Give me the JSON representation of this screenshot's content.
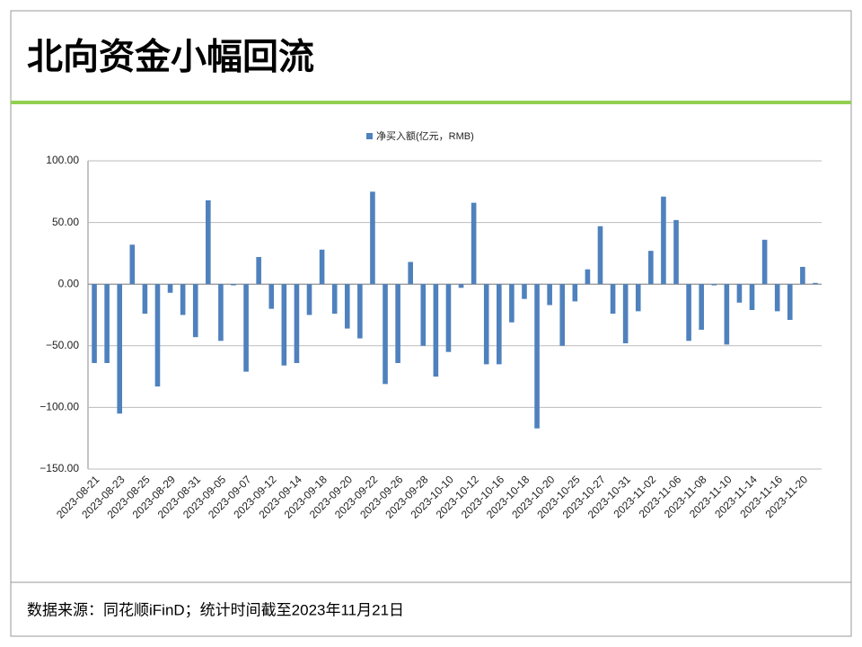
{
  "header": {
    "title": "北向资金小幅回流"
  },
  "chart_data": {
    "type": "bar",
    "categories": [
      "2023-08-21",
      null,
      "2023-08-23",
      null,
      "2023-08-25",
      null,
      "2023-08-29",
      null,
      "2023-08-31",
      null,
      "2023-09-05",
      null,
      "2023-09-07",
      null,
      "2023-09-12",
      null,
      "2023-09-14",
      null,
      "2023-09-18",
      null,
      "2023-09-20",
      null,
      "2023-09-22",
      null,
      "2023-09-26",
      null,
      "2023-09-28",
      null,
      "2023-10-10",
      null,
      "2023-10-12",
      null,
      "2023-10-16",
      null,
      "2023-10-18",
      null,
      "2023-10-20",
      null,
      "2023-10-25",
      null,
      "2023-10-27",
      null,
      "2023-10-31",
      null,
      "2023-11-02",
      null,
      "2023-11-06",
      null,
      "2023-11-08",
      null,
      "2023-11-10",
      null,
      "2023-11-14",
      null,
      "2023-11-16",
      null,
      "2023-11-20",
      null
    ],
    "series": [
      {
        "name": "净买入额(亿元，RMB)",
        "color": "#4f81bd",
        "values": [
          -64,
          -64,
          -105,
          32,
          -24,
          -83,
          -7,
          -25,
          -43,
          68,
          -46,
          -1,
          -71,
          22,
          -20,
          -66,
          -64,
          -25,
          28,
          -24,
          -36,
          -44,
          75,
          -81,
          -64,
          18,
          -50,
          -75,
          -55,
          -3,
          66,
          -65,
          -65,
          -31,
          -12,
          -117,
          -17,
          -50,
          -14,
          12,
          47,
          -24,
          -48,
          -22,
          27,
          71,
          52,
          -46,
          -37,
          -1,
          -49,
          -15,
          -21,
          36,
          -22,
          -29,
          14,
          1
        ]
      }
    ],
    "ylim": [
      -150,
      100
    ],
    "yticks": [
      {
        "value": -150,
        "label": "−150.00"
      },
      {
        "value": -100,
        "label": "−100.00"
      },
      {
        "value": -50,
        "label": "−50.00"
      },
      {
        "value": 0,
        "label": "0.00"
      },
      {
        "value": 50,
        "label": "50.00"
      },
      {
        "value": 100,
        "label": "100.00"
      }
    ],
    "grid": true,
    "legend": "top"
  },
  "footer": {
    "source": "数据来源：同花顺iFinD；统计时间截至2023年11月21日"
  }
}
